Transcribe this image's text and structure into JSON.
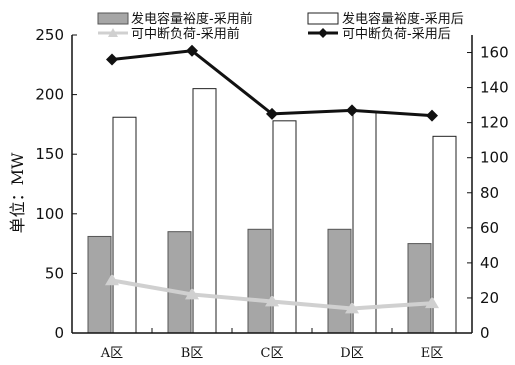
{
  "chart_data": {
    "type": "bar",
    "categories": [
      "A区",
      "B区",
      "C区",
      "D区",
      "E区"
    ],
    "ylabel": "单位：MW",
    "y_left": {
      "lim": [
        0,
        250
      ],
      "ticks": [
        0,
        50,
        100,
        150,
        200,
        250
      ]
    },
    "y_right": {
      "lim": [
        0,
        170
      ],
      "ticks": [
        0,
        20,
        40,
        60,
        80,
        100,
        120,
        140,
        160
      ]
    },
    "series": [
      {
        "name": "发电容量裕度-采用前",
        "kind": "bar",
        "axis": "left",
        "color": "#a6a6a6",
        "values": [
          81,
          85,
          87,
          87,
          75
        ]
      },
      {
        "name": "发电容量裕度-采用后",
        "kind": "bar",
        "axis": "left",
        "color": "#ffffff",
        "values": [
          181,
          205,
          178,
          186,
          165
        ]
      },
      {
        "name": "可中断负荷-采用前",
        "kind": "line",
        "axis": "right",
        "color": "#d0d0d0",
        "values": [
          30,
          22,
          18,
          14,
          17
        ]
      },
      {
        "name": "可中断负荷-采用后",
        "kind": "line",
        "axis": "right",
        "color": "#111111",
        "values": [
          156,
          161,
          125,
          127,
          124
        ]
      }
    ],
    "legend_position": "top",
    "grid": false
  }
}
